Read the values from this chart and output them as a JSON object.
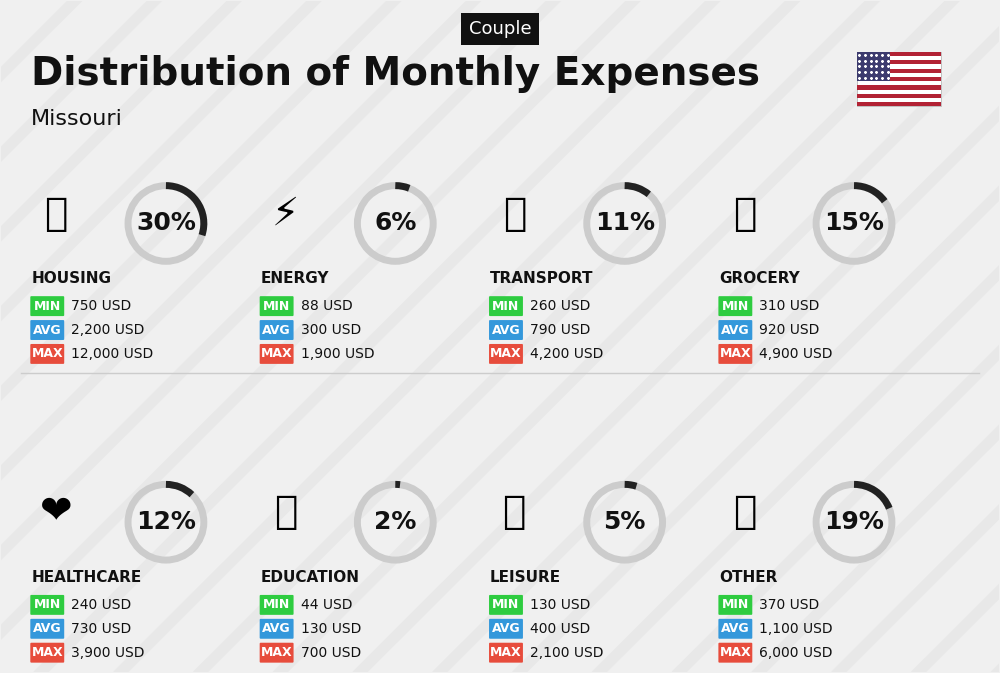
{
  "title": "Distribution of Monthly Expenses",
  "subtitle": "Missouri",
  "tag": "Couple",
  "bg_color": "#f0f0f0",
  "categories": [
    {
      "name": "HOUSING",
      "pct": 30,
      "min_val": "750 USD",
      "avg_val": "2,200 USD",
      "max_val": "12,000 USD",
      "row": 0,
      "col": 0
    },
    {
      "name": "ENERGY",
      "pct": 6,
      "min_val": "88 USD",
      "avg_val": "300 USD",
      "max_val": "1,900 USD",
      "row": 0,
      "col": 1
    },
    {
      "name": "TRANSPORT",
      "pct": 11,
      "min_val": "260 USD",
      "avg_val": "790 USD",
      "max_val": "4,200 USD",
      "row": 0,
      "col": 2
    },
    {
      "name": "GROCERY",
      "pct": 15,
      "min_val": "310 USD",
      "avg_val": "920 USD",
      "max_val": "4,900 USD",
      "row": 0,
      "col": 3
    },
    {
      "name": "HEALTHCARE",
      "pct": 12,
      "min_val": "240 USD",
      "avg_val": "730 USD",
      "max_val": "3,900 USD",
      "row": 1,
      "col": 0
    },
    {
      "name": "EDUCATION",
      "pct": 2,
      "min_val": "44 USD",
      "avg_val": "130 USD",
      "max_val": "700 USD",
      "row": 1,
      "col": 1
    },
    {
      "name": "LEISURE",
      "pct": 5,
      "min_val": "130 USD",
      "avg_val": "400 USD",
      "max_val": "2,100 USD",
      "row": 1,
      "col": 2
    },
    {
      "name": "OTHER",
      "pct": 19,
      "min_val": "370 USD",
      "avg_val": "1,100 USD",
      "max_val": "6,000 USD",
      "row": 1,
      "col": 3
    }
  ],
  "min_color": "#2ecc40",
  "avg_color": "#3498db",
  "max_color": "#e74c3c",
  "label_color": "#ffffff",
  "text_color": "#111111",
  "pct_fontsize": 18,
  "cat_fontsize": 11,
  "val_fontsize": 11,
  "tag_fontsize": 13,
  "title_fontsize": 28,
  "subtitle_fontsize": 16,
  "circle_color_filled": "#222222",
  "circle_color_empty": "#cccccc"
}
